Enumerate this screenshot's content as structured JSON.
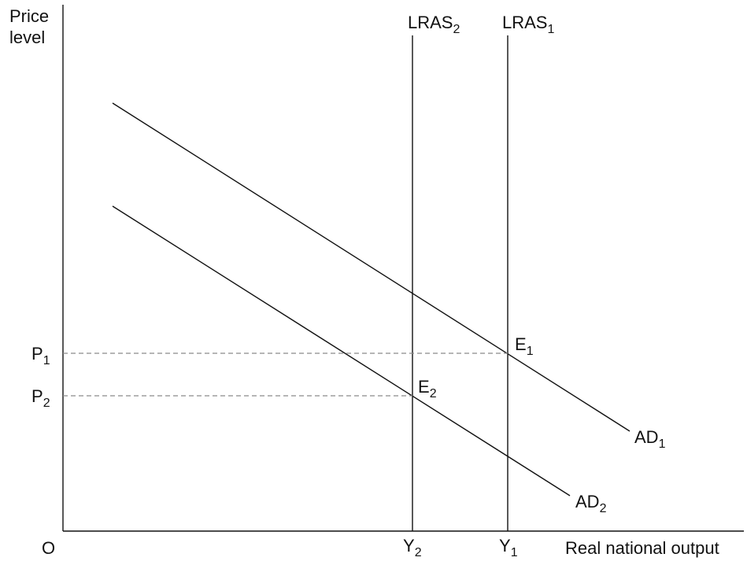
{
  "axes": {
    "y_label_line1": "Price",
    "y_label_line2": "level",
    "x_label": "Real national output",
    "origin": "O"
  },
  "curves": {
    "lras2": {
      "base": "LRAS",
      "sub": "2"
    },
    "lras1": {
      "base": "LRAS",
      "sub": "1"
    },
    "ad1": {
      "base": "AD",
      "sub": "1"
    },
    "ad2": {
      "base": "AD",
      "sub": "2"
    }
  },
  "points": {
    "e1": {
      "base": "E",
      "sub": "1"
    },
    "e2": {
      "base": "E",
      "sub": "2"
    }
  },
  "y_ticks": {
    "p1": {
      "base": "P",
      "sub": "1"
    },
    "p2": {
      "base": "P",
      "sub": "2"
    }
  },
  "x_ticks": {
    "y2": {
      "base": "Y",
      "sub": "2"
    },
    "y1": {
      "base": "Y",
      "sub": "1"
    }
  },
  "colors": {
    "line": "#111111",
    "dashed_guide": "#8a8a8a",
    "background": "#ffffff"
  }
}
